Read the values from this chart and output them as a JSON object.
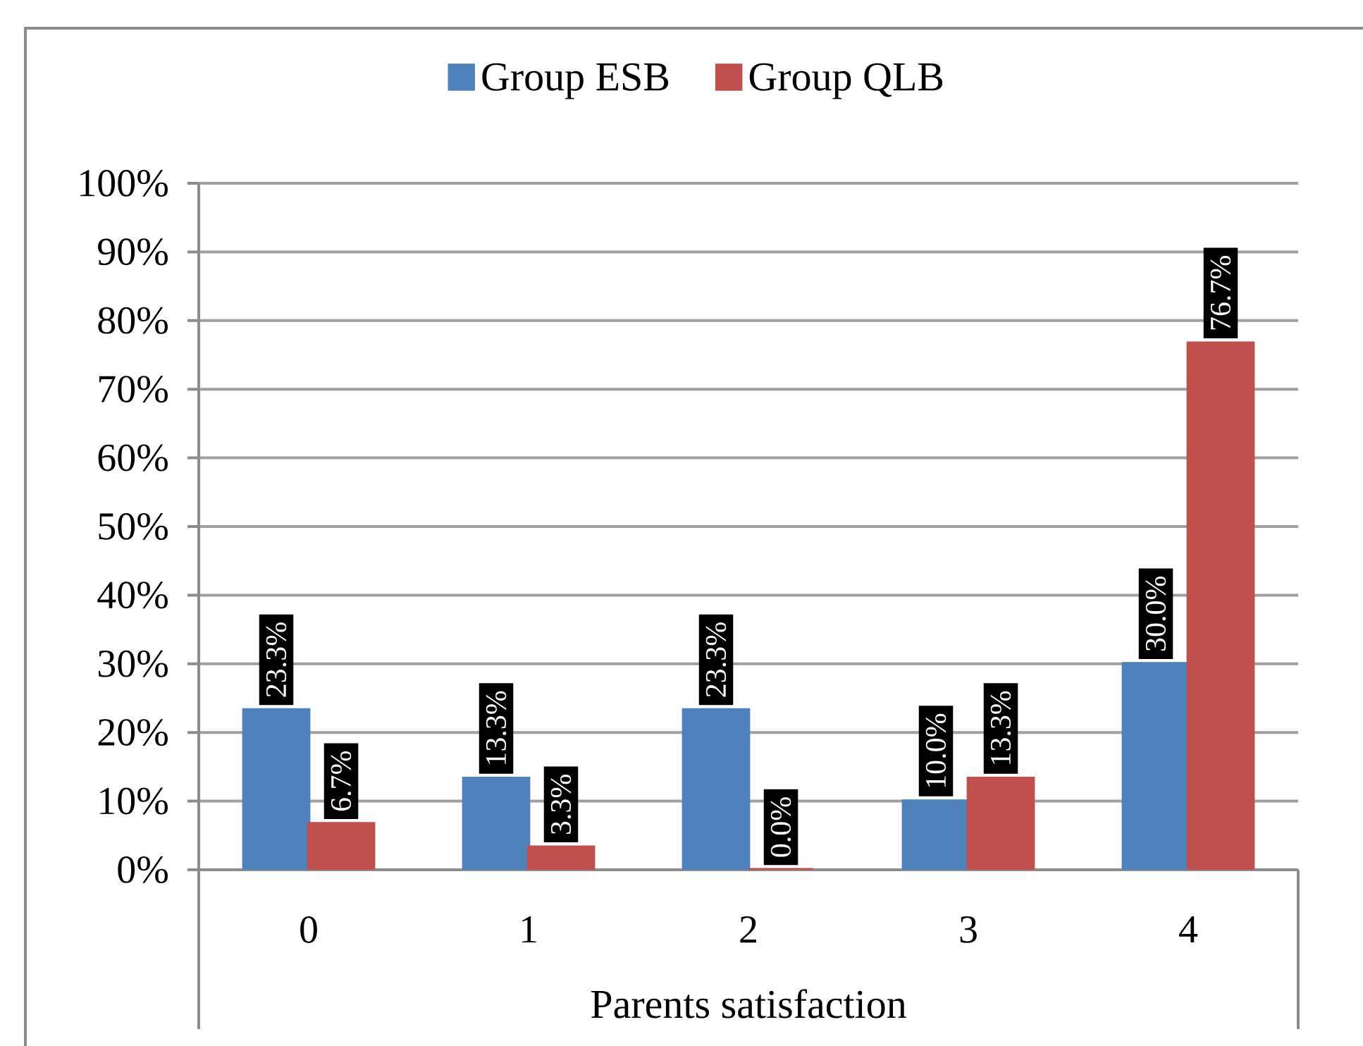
{
  "chart_data": {
    "type": "bar",
    "xlabel": "Parents satisfaction",
    "categories": [
      "0",
      "1",
      "2",
      "3",
      "4"
    ],
    "series": [
      {
        "name": "Group ESB",
        "color": "#4f81bd",
        "values": [
          23.3,
          13.3,
          23.3,
          10.0,
          30.0
        ],
        "value_labels": [
          "23.3%",
          "13.3%",
          "23.3%",
          "10.0%",
          "30.0%"
        ]
      },
      {
        "name": "Group QLB",
        "color": "#c0504d",
        "values": [
          6.7,
          3.3,
          0.0,
          13.3,
          76.7
        ],
        "value_labels": [
          "6.7%",
          "3.3%",
          "0.0%",
          "13.3%",
          "76.7%"
        ]
      }
    ],
    "ylim": [
      0,
      100
    ],
    "yticks": [
      {
        "value": 0,
        "label": "0%"
      },
      {
        "value": 10,
        "label": "10%"
      },
      {
        "value": 20,
        "label": "20%"
      },
      {
        "value": 30,
        "label": "30%"
      },
      {
        "value": 40,
        "label": "40%"
      },
      {
        "value": 50,
        "label": "50%"
      },
      {
        "value": 60,
        "label": "60%"
      },
      {
        "value": 70,
        "label": "70%"
      },
      {
        "value": 80,
        "label": "80%"
      },
      {
        "value": 90,
        "label": "90%"
      },
      {
        "value": 100,
        "label": "100%"
      }
    ],
    "grid": "y",
    "legend": "top"
  }
}
